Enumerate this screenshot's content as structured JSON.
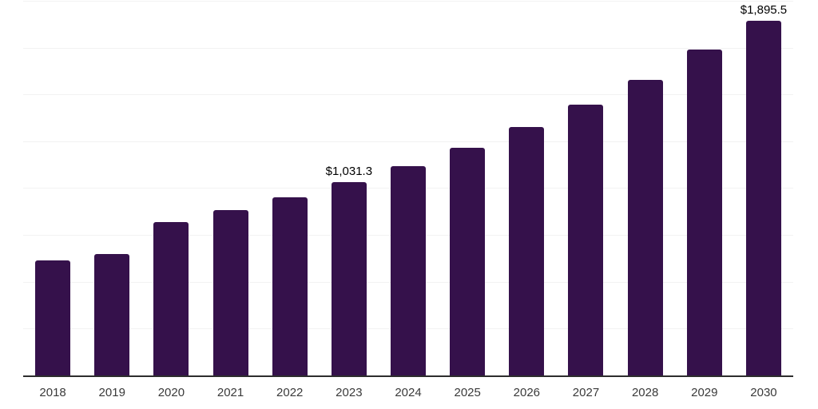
{
  "chart_data": {
    "type": "bar",
    "title": "",
    "xlabel": "",
    "ylabel": "",
    "categories": [
      "2018",
      "2019",
      "2020",
      "2021",
      "2022",
      "2023",
      "2024",
      "2025",
      "2026",
      "2027",
      "2028",
      "2029",
      "2030"
    ],
    "values": [
      615,
      649,
      820,
      884,
      952,
      1031.3,
      1117,
      1217,
      1328,
      1444,
      1580,
      1738,
      1895.5
    ],
    "data_labels": [
      "",
      "",
      "",
      "",
      "",
      "$1,031.3",
      "",
      "",
      "",
      "",
      "",
      "",
      "$1,895.5"
    ],
    "ylim": [
      0,
      2000
    ],
    "gridline_step": 250,
    "grid": true,
    "legend": false,
    "colors": {
      "bar": "#35114b",
      "gridline": "#f2f2f2",
      "axis_line": "#2d2d2d",
      "tick_label": "#3a3a3a",
      "data_label": "#000000"
    }
  }
}
